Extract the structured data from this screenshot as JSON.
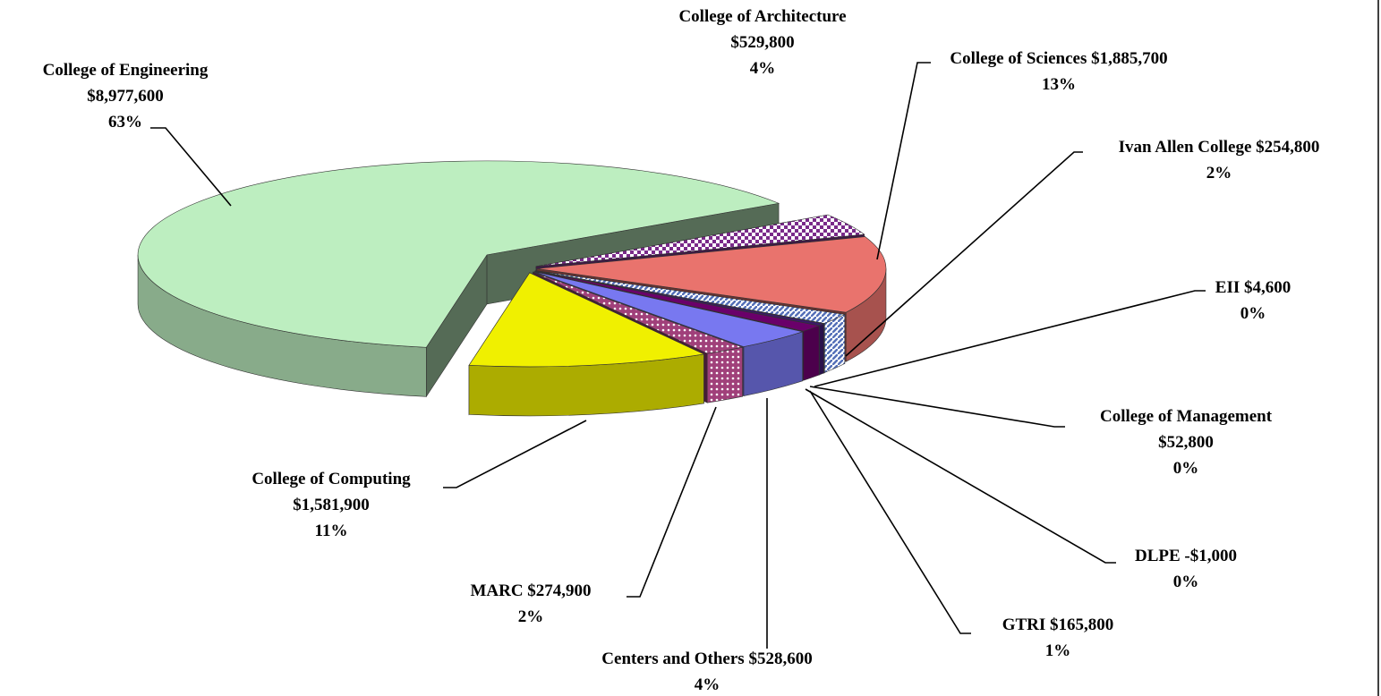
{
  "chart_data": {
    "type": "pie3d",
    "categories": [
      "College of Engineering",
      "College of Architecture",
      "College of Sciences",
      "Ivan Allen College",
      "EII",
      "College of Management",
      "DLPE",
      "GTRI",
      "Centers and Others",
      "MARC",
      "College of Computing"
    ],
    "values": [
      8977600,
      529800,
      1885700,
      254800,
      4600,
      52800,
      -1000,
      165800,
      528600,
      274900,
      1581900
    ],
    "value_labels": [
      "$8,977,600",
      "$529,800",
      "$1,885,700",
      "$254,800",
      "$4,600",
      "$52,800",
      "-$1,000",
      "$165,800",
      "$528,600",
      "$274,900",
      "$1,581,900"
    ],
    "percents": [
      63,
      4,
      13,
      2,
      0,
      0,
      0,
      1,
      4,
      2,
      11
    ],
    "percent_labels": [
      "63%",
      "4%",
      "13%",
      "2%",
      "0%",
      "0%",
      "0%",
      "1%",
      "4%",
      "2%",
      "11%"
    ],
    "colors": [
      "#bdeec0",
      "#8a3a9a",
      "#e9736d",
      "#8aa0d8",
      "#6a6acc",
      "#3a1a6a",
      "#cc6699",
      "#6a006a",
      "#7878f0",
      "#a0407a",
      "#f0f000"
    ]
  }
}
